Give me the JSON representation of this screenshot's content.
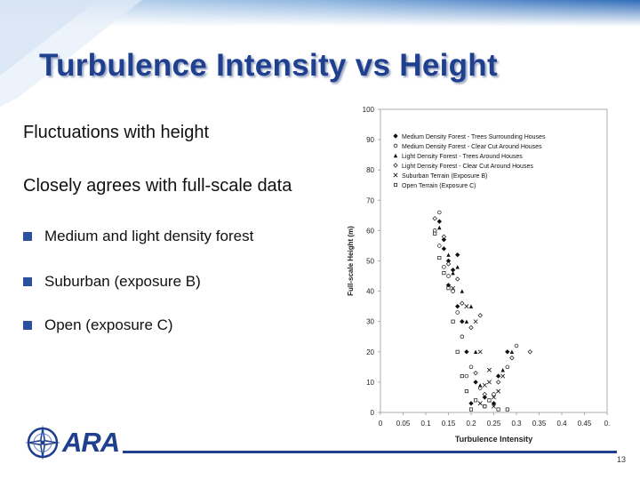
{
  "slide": {
    "title": "Turbulence Intensity vs Height",
    "line1": "Fluctuations with height",
    "line2": "Closely agrees with full-scale data",
    "bullets": [
      "Medium and light density forest",
      "Suburban (exposure B)",
      "Open (exposure C)"
    ],
    "page_number": "13",
    "logo_text": "ARA",
    "colors": {
      "title": "#1f3f8f",
      "accent": "#2c4f9e"
    }
  },
  "chart_data": {
    "type": "scatter",
    "xlabel": "Turbulence Intensity",
    "ylabel": "Full-scale Height (m)",
    "xlim": [
      0,
      0.5
    ],
    "ylim": [
      0,
      100
    ],
    "xticks": [
      "0",
      "0.05",
      "0.1",
      "0.15",
      "0.2",
      "0.25",
      "0.3",
      "0.35",
      "0.4",
      "0.45",
      "0."
    ],
    "yticks": [
      "0",
      "10",
      "20",
      "30",
      "40",
      "50",
      "60",
      "70",
      "80",
      "90",
      "100"
    ],
    "grid": false,
    "legend_position": "top-right",
    "series": [
      {
        "name": "Medium Density Forest - Trees Surrounding Houses",
        "marker": "diamond",
        "points": [
          [
            0.13,
            63
          ],
          [
            0.14,
            57
          ],
          [
            0.15,
            50
          ],
          [
            0.16,
            47
          ],
          [
            0.15,
            42
          ],
          [
            0.17,
            35
          ],
          [
            0.18,
            30
          ],
          [
            0.19,
            20
          ],
          [
            0.21,
            10
          ],
          [
            0.23,
            5
          ],
          [
            0.26,
            12
          ],
          [
            0.28,
            20
          ],
          [
            0.17,
            52
          ],
          [
            0.14,
            54
          ],
          [
            0.2,
            3
          ],
          [
            0.25,
            3
          ]
        ]
      },
      {
        "name": "Medium Density Forest - Clear Cut Around Houses",
        "marker": "circle",
        "points": [
          [
            0.12,
            60
          ],
          [
            0.13,
            55
          ],
          [
            0.14,
            48
          ],
          [
            0.15,
            45
          ],
          [
            0.16,
            40
          ],
          [
            0.17,
            33
          ],
          [
            0.18,
            25
          ],
          [
            0.2,
            15
          ],
          [
            0.22,
            8
          ],
          [
            0.25,
            6
          ],
          [
            0.28,
            15
          ],
          [
            0.3,
            22
          ],
          [
            0.13,
            66
          ],
          [
            0.19,
            12
          ],
          [
            0.23,
            2
          ]
        ]
      },
      {
        "name": "Light Density Forest - Trees Around Houses",
        "marker": "triangle",
        "points": [
          [
            0.13,
            61
          ],
          [
            0.15,
            52
          ],
          [
            0.16,
            46
          ],
          [
            0.18,
            40
          ],
          [
            0.19,
            30
          ],
          [
            0.21,
            20
          ],
          [
            0.22,
            9
          ],
          [
            0.24,
            4
          ],
          [
            0.27,
            14
          ],
          [
            0.29,
            20
          ],
          [
            0.2,
            35
          ],
          [
            0.17,
            48
          ]
        ]
      },
      {
        "name": "Light Density Forest - Clear Cut Around Houses",
        "marker": "open-diamond",
        "points": [
          [
            0.12,
            64
          ],
          [
            0.14,
            58
          ],
          [
            0.15,
            49
          ],
          [
            0.17,
            44
          ],
          [
            0.18,
            36
          ],
          [
            0.2,
            28
          ],
          [
            0.21,
            13
          ],
          [
            0.23,
            6
          ],
          [
            0.26,
            10
          ],
          [
            0.29,
            18
          ],
          [
            0.33,
            20
          ],
          [
            0.22,
            32
          ]
        ]
      },
      {
        "name": "Suburban Terrain (Exposure B)",
        "marker": "x",
        "points": [
          [
            0.16,
            41
          ],
          [
            0.19,
            35
          ],
          [
            0.21,
            30
          ],
          [
            0.22,
            20
          ],
          [
            0.24,
            10
          ],
          [
            0.25,
            5
          ],
          [
            0.26,
            7
          ],
          [
            0.27,
            12
          ],
          [
            0.22,
            3
          ],
          [
            0.24,
            14
          ],
          [
            0.25,
            2
          ],
          [
            0.23,
            9
          ]
        ]
      },
      {
        "name": "Open Terrain (Exposure C)",
        "marker": "square",
        "points": [
          [
            0.12,
            59
          ],
          [
            0.13,
            51
          ],
          [
            0.14,
            46
          ],
          [
            0.15,
            41
          ],
          [
            0.16,
            30
          ],
          [
            0.17,
            20
          ],
          [
            0.18,
            12
          ],
          [
            0.19,
            7
          ],
          [
            0.21,
            4
          ],
          [
            0.23,
            2
          ],
          [
            0.24,
            4
          ],
          [
            0.26,
            1
          ],
          [
            0.28,
            1
          ],
          [
            0.2,
            1
          ]
        ]
      }
    ]
  }
}
